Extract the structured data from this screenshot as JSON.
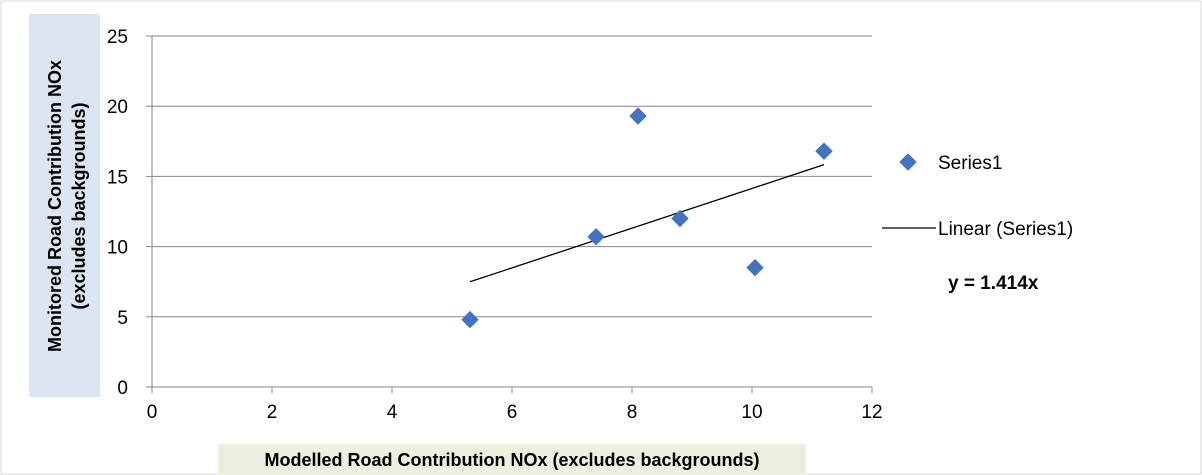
{
  "chart_data": {
    "type": "scatter",
    "xlabel": "Modelled Road Contribution NOx (excludes backgrounds)",
    "ylabel_lines": [
      "Monitored Road Contribution NOx",
      "(excludes backgrounds)"
    ],
    "xlim": [
      0,
      12
    ],
    "ylim": [
      0,
      25
    ],
    "x_ticks": [
      0,
      2,
      4,
      6,
      8,
      10,
      12
    ],
    "y_ticks": [
      0,
      5,
      10,
      15,
      20,
      25
    ],
    "grid": "horizontal",
    "legend_position": "right",
    "series": [
      {
        "name": "Series1",
        "marker": "diamond",
        "color": "#4472C4",
        "x": [
          5.3,
          7.4,
          8.1,
          8.8,
          10.05,
          11.2
        ],
        "y": [
          4.8,
          10.7,
          19.3,
          12.0,
          8.5,
          16.8
        ]
      }
    ],
    "trendline": {
      "name": "Linear (Series1)",
      "slope": 1.414,
      "x_range": [
        5.3,
        11.2
      ],
      "color": "#000000"
    },
    "annotation": "y = 1.414x"
  },
  "colors": {
    "marker": "#4472C4",
    "grid": "#868686",
    "axis_title_bg_y": "#DCE6F2",
    "axis_title_bg_x": "#EBF1DE",
    "border": "#D9D9D9"
  }
}
